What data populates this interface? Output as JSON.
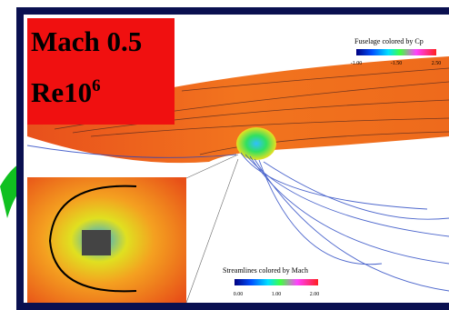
{
  "labels": {
    "condition": "Mach 0.5",
    "reynolds_base": "Re10",
    "reynolds_exp": "6"
  },
  "legends": [
    {
      "title": "Fuselage colored by Cp",
      "ticks": [
        "-1.00",
        "-1.50",
        "2.50"
      ]
    },
    {
      "title": "Streamlines colored by Mach",
      "ticks": [
        "0.00",
        "1.00",
        "2.00"
      ]
    }
  ]
}
